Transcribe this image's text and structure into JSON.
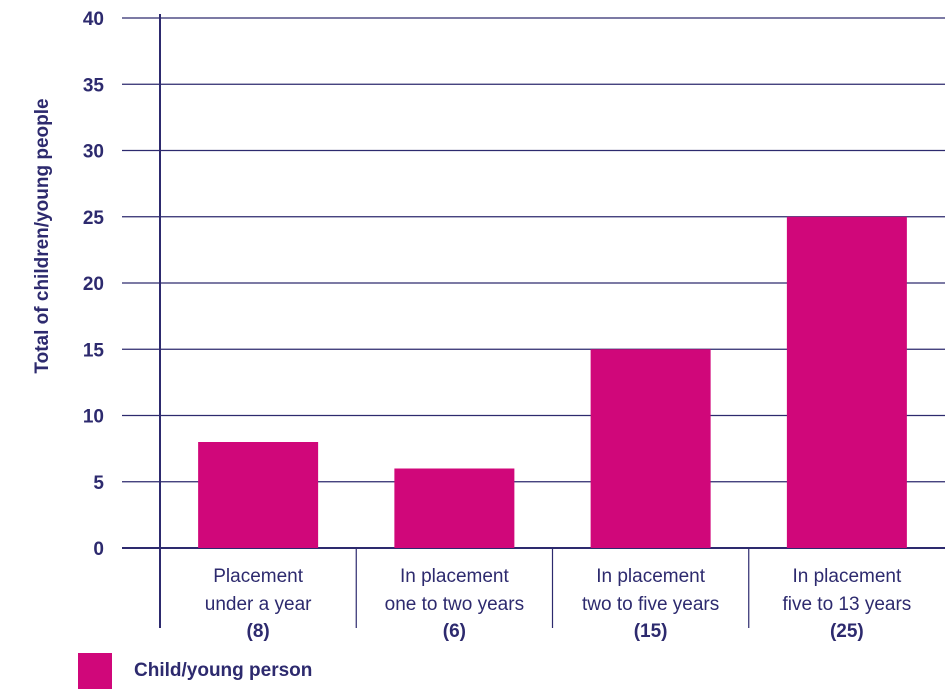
{
  "colors": {
    "axis": "#2d2a6e",
    "bar": "#d0077a",
    "text": "#2d2a6e"
  },
  "chart_data": {
    "type": "bar",
    "ylabel": "Total of children/young people",
    "xlabel": "",
    "ylim": [
      0,
      40
    ],
    "yticks": [
      "0",
      "5",
      "10",
      "15",
      "20",
      "25",
      "30",
      "35",
      "40"
    ],
    "grid": true,
    "categories": [
      {
        "line1": "Placement",
        "line2": "under a year",
        "count": "(8)"
      },
      {
        "line1": "In placement",
        "line2": "one to two years",
        "count": "(6)"
      },
      {
        "line1": "In placement",
        "line2": "two to five years",
        "count": "(15)"
      },
      {
        "line1": "In placement",
        "line2": "five to 13 years",
        "count": "(25)"
      }
    ],
    "series": [
      {
        "name": "Child/young person",
        "values": [
          8,
          6,
          15,
          25
        ]
      }
    ],
    "legend_position": "bottom-left"
  }
}
